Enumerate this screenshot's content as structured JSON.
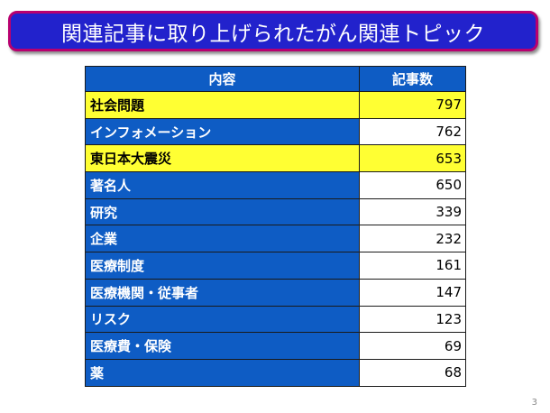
{
  "slide": {
    "title": "関連記事に取り上げられたがん関連トピック",
    "page_number": "3"
  },
  "table": {
    "headers": [
      "内容",
      "記事数"
    ],
    "rows": [
      {
        "topic": "社会問題",
        "count": "797",
        "highlight": true
      },
      {
        "topic": "インフォメーション",
        "count": "762",
        "highlight": false
      },
      {
        "topic": "東日本大震災",
        "count": "653",
        "highlight": true
      },
      {
        "topic": "著名人",
        "count": "650",
        "highlight": false
      },
      {
        "topic": "研究",
        "count": "339",
        "highlight": false
      },
      {
        "topic": "企業",
        "count": "232",
        "highlight": false
      },
      {
        "topic": "医療制度",
        "count": "161",
        "highlight": false
      },
      {
        "topic": "医療機関・従事者",
        "count": "147",
        "highlight": false
      },
      {
        "topic": "リスク",
        "count": "123",
        "highlight": false
      },
      {
        "topic": "医療費・保険",
        "count": "69",
        "highlight": false
      },
      {
        "topic": "薬",
        "count": "68",
        "highlight": false
      }
    ]
  },
  "colors": {
    "title_background": "#2222cc",
    "title_border": "#b8006f",
    "cell_blue": "#0e5cc4",
    "highlight_yellow": "#ffff33"
  }
}
